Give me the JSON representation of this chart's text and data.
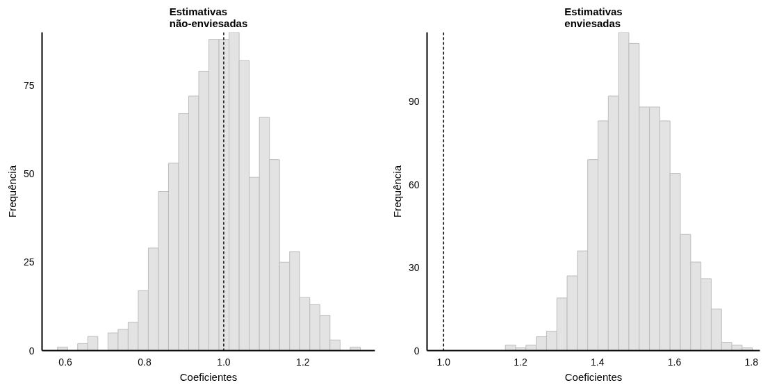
{
  "chart_data": [
    {
      "type": "histogram",
      "title": "Estimativas\nnão-enviesadas",
      "xlabel": "Coeficientes",
      "ylabel": "Frequência",
      "bins": [
        0.58,
        0.6055,
        0.631,
        0.6565,
        0.682,
        0.7075,
        0.733,
        0.7585,
        0.784,
        0.8095,
        0.835,
        0.8605,
        0.886,
        0.9115,
        0.937,
        0.9625,
        0.988,
        1.0135,
        1.039,
        1.0645,
        1.09,
        1.1155,
        1.141,
        1.1665,
        1.192,
        1.2175,
        1.243,
        1.2685,
        1.294,
        1.3195,
        1.345
      ],
      "values": [
        1,
        0,
        2,
        4,
        0,
        5,
        6,
        8,
        17,
        29,
        45,
        53,
        67,
        72,
        79,
        88,
        88,
        90,
        82,
        49,
        66,
        54,
        25,
        28,
        15,
        13,
        10,
        3,
        0,
        1
      ],
      "color": "#e3e3e3",
      "xlim": [
        0.541,
        1.382
      ],
      "ylim": [
        0,
        90
      ],
      "xticks": [
        0.6,
        0.8,
        {
          "value": 1.0,
          "label": "1.0"
        },
        1.2
      ],
      "yticks": [
        0,
        25,
        50,
        75
      ],
      "grid": false,
      "ref_lines": [
        {
          "axis": "x",
          "value": 1.0,
          "color": "#000000",
          "line_style": "dashed"
        }
      ]
    },
    {
      "type": "histogram",
      "title": "Estimativas\nenviesadas",
      "xlabel": "Coeficientes",
      "ylabel": "Frequência",
      "bins": [
        1.1605,
        1.18725,
        1.214,
        1.24075,
        1.2675,
        1.29425,
        1.321,
        1.34775,
        1.3745,
        1.40125,
        1.428,
        1.45475,
        1.4815,
        1.50825,
        1.535,
        1.56175,
        1.5885,
        1.61525,
        1.642,
        1.66875,
        1.6955,
        1.72225,
        1.749,
        1.77575,
        1.8025
      ],
      "values": [
        2,
        1,
        2,
        5,
        7,
        19,
        27,
        36,
        69,
        83,
        92,
        115,
        111,
        88,
        88,
        83,
        64,
        42,
        32,
        26,
        15,
        3,
        2,
        1
      ],
      "color": "#e3e3e3",
      "xlim": [
        0.957,
        1.822
      ],
      "ylim": [
        0,
        115
      ],
      "xticks": [
        {
          "value": 1.0,
          "label": "1.0"
        },
        1.2,
        1.4,
        1.6,
        1.8
      ],
      "yticks": [
        0,
        30,
        60,
        90
      ],
      "grid": false,
      "ref_lines": [
        {
          "axis": "x",
          "value": 1.0,
          "color": "#000000",
          "line_style": "dashed"
        }
      ]
    }
  ]
}
